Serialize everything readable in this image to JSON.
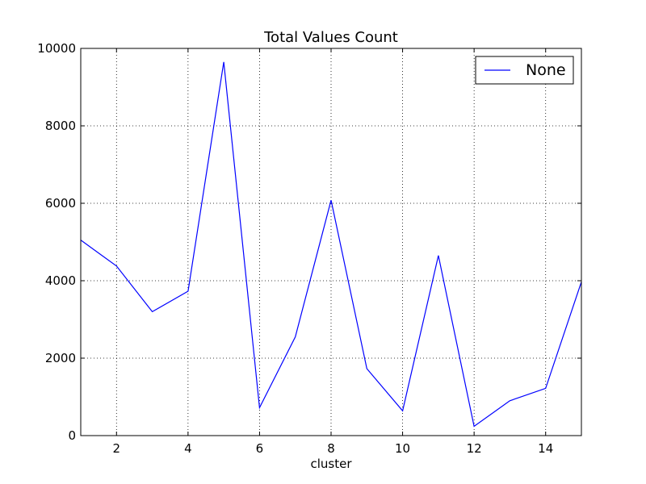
{
  "chart_data": {
    "type": "line",
    "title": "Total Values Count",
    "xlabel": "cluster",
    "ylabel": "",
    "xlim": [
      1,
      15
    ],
    "ylim": [
      0,
      10000
    ],
    "x_ticks": [
      2,
      4,
      6,
      8,
      10,
      12,
      14
    ],
    "y_ticks": [
      0,
      2000,
      4000,
      6000,
      8000,
      10000
    ],
    "grid": true,
    "legend_position": "top-right",
    "x": [
      1,
      2,
      3,
      4,
      5,
      6,
      7,
      8,
      9,
      10,
      11,
      12,
      13,
      14,
      15
    ],
    "series": [
      {
        "name": "None",
        "color": "#0000ff",
        "values": [
          5050,
          4380,
          3200,
          3730,
          9650,
          720,
          2550,
          6080,
          1730,
          640,
          4650,
          240,
          900,
          1220,
          3970
        ]
      }
    ]
  }
}
